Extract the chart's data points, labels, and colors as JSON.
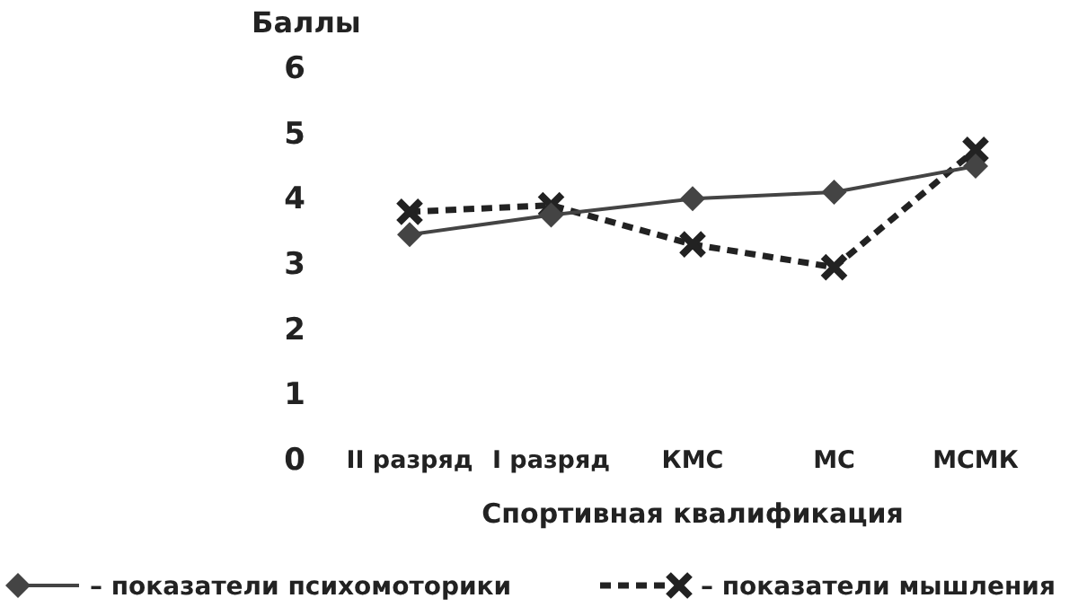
{
  "chart_data": {
    "type": "line",
    "ylabel": "Баллы",
    "xlabel": "Спортивная  квалификация",
    "categories": [
      "II разряд",
      "I разряд",
      "КМС",
      "МС",
      "МСМК"
    ],
    "ylim": [
      0,
      6
    ],
    "yticks": [
      0,
      1,
      2,
      3,
      4,
      5,
      6
    ],
    "grid": false,
    "legend": "bottom",
    "series": [
      {
        "name": "– показатели психомоторики",
        "color": "#444444",
        "marker": "diamond",
        "line_style": "solid",
        "values": [
          3.45,
          3.75,
          4.0,
          4.1,
          4.5
        ]
      },
      {
        "name": "– показатели мышления",
        "color": "#222222",
        "marker": "cross",
        "line_style": "dashed",
        "values": [
          3.8,
          3.9,
          3.3,
          2.95,
          4.75
        ]
      }
    ]
  }
}
